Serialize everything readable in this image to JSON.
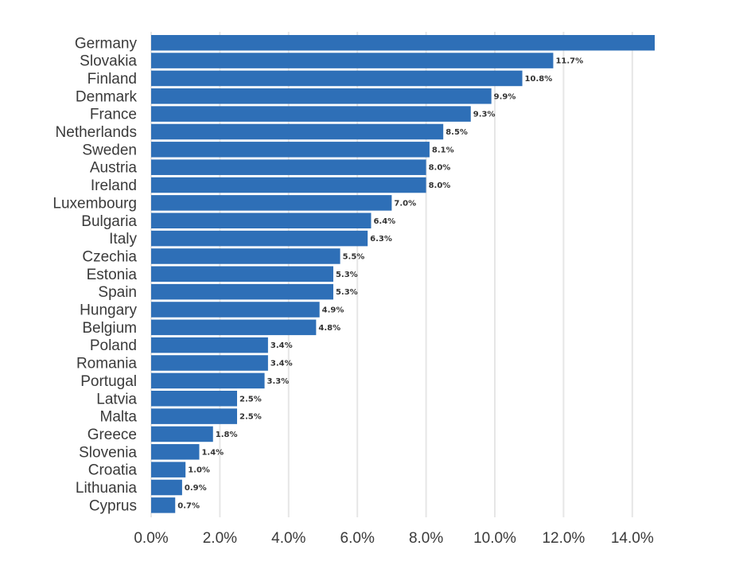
{
  "chart_data": {
    "type": "bar",
    "orientation": "horizontal",
    "title": "",
    "xlabel": "",
    "ylabel": "",
    "categories": [
      "Germany",
      "Slovakia",
      "Finland",
      "Denmark",
      "France",
      "Netherlands",
      "Sweden",
      "Austria",
      "Ireland",
      "Luxembourg",
      "Bulgaria",
      "Italy",
      "Czechia",
      "Estonia",
      "Spain",
      "Hungary",
      "Belgium",
      "Poland",
      "Romania",
      "Portugal",
      "Latvia",
      "Malta",
      "Greece",
      "Slovenia",
      "Croatia",
      "Lithuania",
      "Cyprus"
    ],
    "values": [
      14.7,
      11.7,
      10.8,
      9.9,
      9.3,
      8.5,
      8.1,
      8.0,
      8.0,
      7.0,
      6.4,
      6.3,
      5.5,
      5.3,
      5.3,
      4.9,
      4.8,
      3.4,
      3.4,
      3.3,
      2.5,
      2.5,
      1.8,
      1.4,
      1.0,
      0.9,
      0.7
    ],
    "value_labels": [
      "",
      "11.7%",
      "10.8%",
      "9.9%",
      "9.3%",
      "8.5%",
      "8.1%",
      "8.0%",
      "8.0%",
      "7.0%",
      "6.4%",
      "6.3%",
      "5.5%",
      "5.3%",
      "5.3%",
      "4.9%",
      "4.8%",
      "3.4%",
      "3.4%",
      "3.3%",
      "2.5%",
      "2.5%",
      "1.8%",
      "1.4%",
      "1.0%",
      "0.9%",
      "0.7%"
    ],
    "xlim": [
      0,
      14.7
    ],
    "xticks": [
      0,
      2,
      4,
      6,
      8,
      10,
      12,
      14
    ],
    "xtick_labels": [
      "0.0%",
      "2.0%",
      "4.0%",
      "6.0%",
      "8.0%",
      "10.0%",
      "12.0%",
      "14.0%"
    ],
    "grid": true,
    "colors": {
      "bar": "#2e6fb7",
      "grid": "#e6e6e6"
    }
  }
}
